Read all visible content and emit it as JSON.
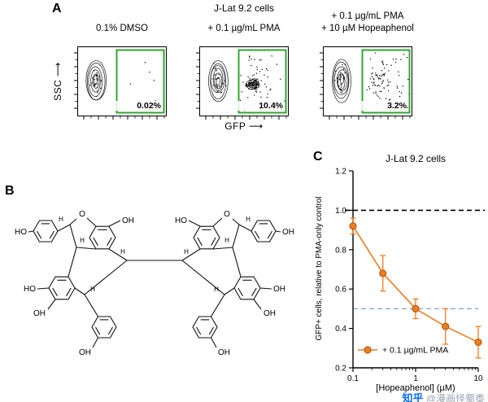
{
  "figure": {
    "panel_a": {
      "label": "A",
      "title": "J-Lat 9.2 cells",
      "ssc_axis": "SSC",
      "gfp_axis": "GFP",
      "axis_arrow": "⟶",
      "gate_color": "#33a532",
      "plots": [
        {
          "condition_lines": [
            "0.1% DMSO"
          ],
          "gate_percent": "0.02%",
          "events_in_gate": 6,
          "secondary_population": false
        },
        {
          "condition_lines": [
            "+ 0.1 µg/mL PMA"
          ],
          "gate_percent": "10.4%",
          "events_in_gate": 150,
          "secondary_population": true
        },
        {
          "condition_lines": [
            "+ 0.1 µg/mL PMA",
            "+ 10 µM Hopeaphenol"
          ],
          "gate_percent": "3.2%",
          "events_in_gate": 90,
          "secondary_population": false
        }
      ]
    },
    "panel_b": {
      "label": "B"
    },
    "panel_c": {
      "label": "C"
    }
  },
  "molecule": {
    "hydroxyl_labels": [
      "HO",
      "OH",
      "HO",
      "OH",
      "OH",
      "OH",
      "HO",
      "OH",
      "OH",
      "OH"
    ],
    "oxygen_labels": [
      "O",
      "O"
    ],
    "stereo_labels": [
      "H",
      "H",
      "H",
      "H",
      "H",
      "H",
      "H",
      "H"
    ]
  },
  "chart_data": {
    "type": "line",
    "title": "J-Lat 9.2 cells",
    "xlabel": "[Hopeaphenol] (µM)",
    "ylabel": "GFP+ cells, relative to PMA-only control",
    "x_scale": "log",
    "xlim": [
      0.1,
      10
    ],
    "ylim": [
      0.2,
      1.2
    ],
    "y_ticks": [
      0.2,
      0.4,
      0.6,
      0.8,
      1.0,
      1.2
    ],
    "x_ticks": [
      0.1,
      1,
      10
    ],
    "grid": false,
    "legend_position": "bottom-left-inside",
    "series": [
      {
        "name": "+ 0.1 µg/mL PMA",
        "color": "#ef7d22",
        "edge_color": "#b85c14",
        "x": [
          0.1,
          0.3,
          1,
          3,
          10
        ],
        "y": [
          0.92,
          0.68,
          0.5,
          0.41,
          0.33
        ],
        "yerr": [
          0.04,
          0.09,
          0.05,
          0.09,
          0.08
        ]
      }
    ],
    "reference_lines": [
      {
        "y": 1.0,
        "color": "#000000",
        "style": "dashed",
        "extend": true
      },
      {
        "y": 0.5,
        "color": "#7f9fc4",
        "style": "dashed",
        "extend": false
      }
    ]
  },
  "watermark": {
    "brand": "知乎",
    "handle": "@漫画怪蜀黍"
  }
}
